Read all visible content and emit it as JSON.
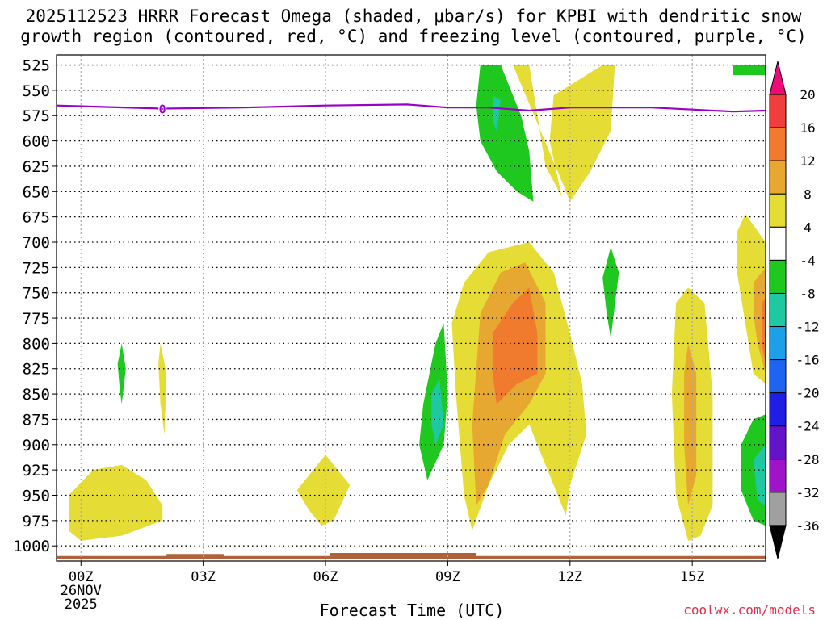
{
  "chart_data": {
    "type": "time-height contour",
    "title_line1": "2025112523 HRRR Forecast Omega (shaded, μbar/s) for KPBI with dendritic snow",
    "title_line2": "growth region (contoured, red, °C) and freezing level (contoured, purple, °C)",
    "xlabel": "Forecast Time (UTC)",
    "credit": "coolwx.com/models",
    "x_ticks": [
      {
        "hour": 0,
        "label": "00Z",
        "sub1": "26NOV",
        "sub2": "2025"
      },
      {
        "hour": 3,
        "label": "03Z"
      },
      {
        "hour": 6,
        "label": "06Z"
      },
      {
        "hour": 9,
        "label": "09Z"
      },
      {
        "hour": 12,
        "label": "12Z"
      },
      {
        "hour": 15,
        "label": "15Z"
      }
    ],
    "xlim": [
      -0.6,
      16.8
    ],
    "y_ticks": [
      525,
      550,
      575,
      600,
      625,
      650,
      675,
      700,
      725,
      750,
      775,
      800,
      825,
      850,
      875,
      900,
      925,
      950,
      975,
      1000
    ],
    "ylim_hpa": [
      1015,
      515
    ],
    "freezing_level": {
      "label": "0",
      "color": "#9a00c8",
      "points": [
        [
          -0.6,
          565
        ],
        [
          2,
          568
        ],
        [
          4,
          567
        ],
        [
          6,
          565
        ],
        [
          8,
          564
        ],
        [
          9,
          567
        ],
        [
          10,
          567
        ],
        [
          11,
          570
        ],
        [
          12,
          567
        ],
        [
          13,
          567
        ],
        [
          14,
          567
        ],
        [
          15,
          569
        ],
        [
          16,
          571
        ],
        [
          16.8,
          570
        ]
      ]
    },
    "colorbar": {
      "labels": [
        "20",
        "16",
        "12",
        "8",
        "4",
        "-4",
        "-8",
        "-12",
        "-16",
        "-20",
        "-24",
        "-28",
        "-32",
        "-36"
      ],
      "colors": [
        "#ee0a78",
        "#f03d3d",
        "#f07a2d",
        "#e6a830",
        "#e6dc36",
        "#ffffff",
        "#1ec81e",
        "#1ec8a0",
        "#1ea0e6",
        "#1e64f0",
        "#1e1ee6",
        "#6414c8",
        "#a014c8",
        "#a0a0a0",
        "#000000"
      ]
    },
    "omega_regions": [
      {
        "level": 4,
        "color": "#e6dc36",
        "points": [
          [
            -0.3,
            985
          ],
          [
            0,
            995
          ],
          [
            1,
            990
          ],
          [
            2,
            975
          ],
          [
            2.0,
            960
          ],
          [
            1.6,
            935
          ],
          [
            1,
            920
          ],
          [
            0.3,
            925
          ],
          [
            -0.3,
            950
          ]
        ]
      },
      {
        "level": 4,
        "color": "#e6dc36",
        "points": [
          [
            1.9,
            820
          ],
          [
            1.95,
            800
          ],
          [
            2.1,
            830
          ],
          [
            2.05,
            890
          ],
          [
            1.95,
            860
          ]
        ]
      },
      {
        "level": 4,
        "color": "#e6dc36",
        "points": [
          [
            5.3,
            945
          ],
          [
            5.8,
            920
          ],
          [
            6.0,
            910
          ],
          [
            6.6,
            940
          ],
          [
            6.2,
            975
          ],
          [
            5.9,
            980
          ],
          [
            5.6,
            965
          ]
        ]
      },
      {
        "level": 4,
        "color": "#e6dc36",
        "points": [
          [
            10.6,
            525
          ],
          [
            11.0,
            525
          ],
          [
            11.4,
            625
          ],
          [
            11.8,
            655
          ],
          [
            11.5,
            600
          ],
          [
            11.6,
            555
          ],
          [
            12.8,
            525
          ],
          [
            13.1,
            525
          ],
          [
            13.0,
            590
          ],
          [
            12.5,
            630
          ],
          [
            12.0,
            660
          ],
          [
            11.8,
            640
          ]
        ]
      },
      {
        "level": 4,
        "color": "#e6dc36",
        "points": [
          [
            9.4,
            740
          ],
          [
            10,
            710
          ],
          [
            11,
            700
          ],
          [
            11.6,
            730
          ],
          [
            12,
            790
          ],
          [
            12.3,
            840
          ],
          [
            12.4,
            890
          ],
          [
            12.0,
            940
          ],
          [
            11.9,
            970
          ],
          [
            11.4,
            920
          ],
          [
            11,
            880
          ],
          [
            10.5,
            900
          ],
          [
            10,
            940
          ],
          [
            9.6,
            985
          ],
          [
            9.4,
            950
          ],
          [
            9.2,
            850
          ],
          [
            9.1,
            780
          ]
        ]
      },
      {
        "level": 4,
        "color": "#e6dc36",
        "points": [
          [
            14.6,
            760
          ],
          [
            14.9,
            745
          ],
          [
            15.3,
            760
          ],
          [
            15.5,
            850
          ],
          [
            15.5,
            960
          ],
          [
            15.2,
            990
          ],
          [
            14.9,
            995
          ],
          [
            14.6,
            950
          ],
          [
            14.5,
            850
          ]
        ]
      },
      {
        "level": 4,
        "color": "#e6dc36",
        "points": [
          [
            16.1,
            690
          ],
          [
            16.3,
            672
          ],
          [
            16.8,
            700
          ],
          [
            16.8,
            840
          ],
          [
            16.5,
            830
          ],
          [
            16.3,
            780
          ],
          [
            16.1,
            730
          ]
        ]
      },
      {
        "level": 8,
        "color": "#e6a830",
        "points": [
          [
            9.8,
            770
          ],
          [
            10.3,
            730
          ],
          [
            10.9,
            720
          ],
          [
            11.4,
            760
          ],
          [
            11.4,
            830
          ],
          [
            11.0,
            860
          ],
          [
            10.4,
            890
          ],
          [
            10.0,
            940
          ],
          [
            9.7,
            960
          ],
          [
            9.6,
            880
          ]
        ]
      },
      {
        "level": 8,
        "color": "#e6a830",
        "points": [
          [
            14.8,
            830
          ],
          [
            14.9,
            800
          ],
          [
            15.1,
            830
          ],
          [
            15.1,
            930
          ],
          [
            14.9,
            960
          ],
          [
            14.8,
            900
          ]
        ]
      },
      {
        "level": 8,
        "color": "#e6a830",
        "points": [
          [
            16.5,
            740
          ],
          [
            16.8,
            725
          ],
          [
            16.8,
            830
          ],
          [
            16.6,
            800
          ],
          [
            16.5,
            770
          ]
        ]
      },
      {
        "level": 12,
        "color": "#f07a2d",
        "points": [
          [
            10.1,
            790
          ],
          [
            10.6,
            760
          ],
          [
            11.0,
            745
          ],
          [
            11.2,
            790
          ],
          [
            11.2,
            830
          ],
          [
            10.7,
            840
          ],
          [
            10.2,
            860
          ],
          [
            10.1,
            830
          ]
        ]
      },
      {
        "level": 12,
        "color": "#f07a2d",
        "points": [
          [
            16.7,
            760
          ],
          [
            16.8,
            755
          ],
          [
            16.8,
            820
          ],
          [
            16.7,
            800
          ]
        ]
      },
      {
        "level": 16,
        "color": "#f03d3d",
        "points": [
          [
            16.78,
            790
          ],
          [
            16.8,
            785
          ],
          [
            16.8,
            805
          ]
        ]
      },
      {
        "level": -4,
        "color": "#1ec81e",
        "points": [
          [
            0.9,
            820
          ],
          [
            1.0,
            800
          ],
          [
            1.1,
            825
          ],
          [
            1.0,
            860
          ],
          [
            0.95,
            845
          ]
        ]
      },
      {
        "level": -4,
        "color": "#1ec81e",
        "points": [
          [
            9.8,
            525
          ],
          [
            10.3,
            525
          ],
          [
            10.8,
            575
          ],
          [
            11.0,
            610
          ],
          [
            11.1,
            660
          ],
          [
            10.7,
            650
          ],
          [
            10.2,
            630
          ],
          [
            9.8,
            600
          ],
          [
            9.7,
            565
          ]
        ]
      },
      {
        "level": -4,
        "color": "#1ec81e",
        "points": [
          [
            8.4,
            860
          ],
          [
            8.7,
            800
          ],
          [
            8.9,
            780
          ],
          [
            9.0,
            850
          ],
          [
            8.9,
            900
          ],
          [
            8.5,
            935
          ],
          [
            8.3,
            900
          ]
        ]
      },
      {
        "level": -4,
        "color": "#1ec81e",
        "points": [
          [
            12.8,
            735
          ],
          [
            13.0,
            705
          ],
          [
            13.2,
            730
          ],
          [
            13.0,
            795
          ],
          [
            12.9,
            770
          ]
        ]
      },
      {
        "level": -4,
        "color": "#1ec81e",
        "points": [
          [
            16.2,
            900
          ],
          [
            16.5,
            875
          ],
          [
            16.8,
            870
          ],
          [
            16.8,
            980
          ],
          [
            16.5,
            975
          ],
          [
            16.2,
            945
          ]
        ]
      },
      {
        "level": -4,
        "color": "#1ec81e",
        "points": [
          [
            16.0,
            525
          ],
          [
            16.8,
            525
          ],
          [
            16.8,
            535
          ],
          [
            16.0,
            535
          ]
        ]
      },
      {
        "level": -8,
        "color": "#1ec8a0",
        "points": [
          [
            10.1,
            555
          ],
          [
            10.3,
            560
          ],
          [
            10.2,
            590
          ],
          [
            10.1,
            580
          ]
        ]
      },
      {
        "level": -8,
        "color": "#1ec8a0",
        "points": [
          [
            8.6,
            850
          ],
          [
            8.8,
            835
          ],
          [
            8.9,
            880
          ],
          [
            8.7,
            900
          ],
          [
            8.6,
            880
          ]
        ]
      },
      {
        "level": -8,
        "color": "#1ec8a0",
        "points": [
          [
            16.5,
            915
          ],
          [
            16.8,
            900
          ],
          [
            16.8,
            960
          ],
          [
            16.6,
            955
          ]
        ]
      }
    ],
    "terrain": {
      "color": "#b0613a",
      "bottom_hpa": 1013,
      "segments": [
        [
          -0.6,
          1010
        ],
        [
          2.1,
          1010
        ],
        [
          2.1,
          1008
        ],
        [
          3.5,
          1008
        ],
        [
          3.5,
          1010
        ],
        [
          6.1,
          1010
        ],
        [
          6.1,
          1007
        ],
        [
          9.7,
          1007
        ],
        [
          9.7,
          1010
        ],
        [
          16.8,
          1010
        ]
      ]
    }
  }
}
